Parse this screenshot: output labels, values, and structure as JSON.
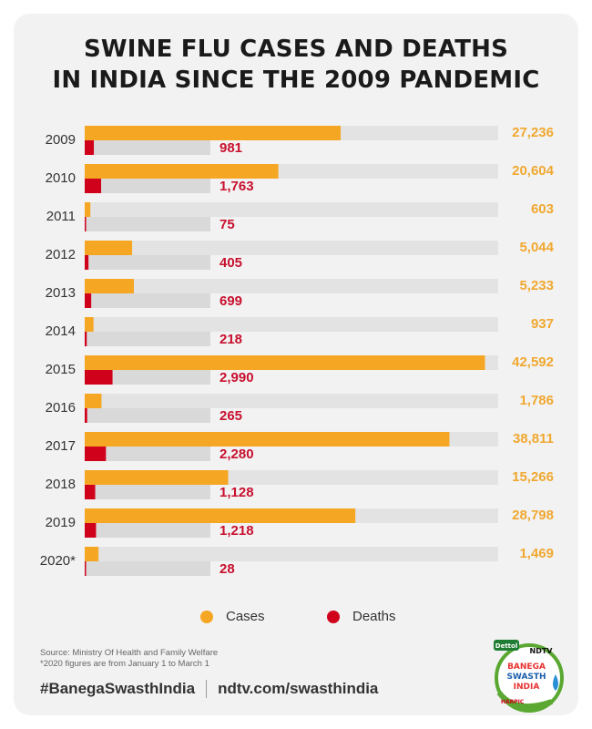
{
  "title_line1": "SWINE FLU CASES AND DEATHS",
  "title_line2": "IN INDIA SINCE THE 2009 PANDEMIC",
  "chart_data": {
    "type": "bar",
    "orientation": "horizontal",
    "title": "SWINE FLU CASES AND DEATHS IN INDIA SINCE THE 2009 PANDEMIC",
    "categories": [
      "2009",
      "2010",
      "2011",
      "2012",
      "2013",
      "2014",
      "2015",
      "2016",
      "2017",
      "2018",
      "2019",
      "2020*"
    ],
    "series": [
      {
        "name": "Cases",
        "color": "#f5a623",
        "values": [
          27236,
          20604,
          603,
          5044,
          5233,
          937,
          42592,
          1786,
          38811,
          15266,
          28798,
          1469
        ],
        "labels": [
          "27,236",
          "20,604",
          "603",
          "5,044",
          "5,233",
          "937",
          "42,592",
          "1,786",
          "38,811",
          "15,266",
          "28,798",
          "1,469"
        ],
        "max": 44000
      },
      {
        "name": "Deaths",
        "color": "#d0021b",
        "values": [
          981,
          1763,
          75,
          405,
          699,
          218,
          2990,
          265,
          2280,
          1128,
          1218,
          28
        ],
        "labels": [
          "981",
          "1,763",
          "75",
          "405",
          "699",
          "218",
          "2,990",
          "265",
          "2,280",
          "1,128",
          "1,218",
          "28"
        ],
        "max": 13500
      }
    ],
    "legend_position": "bottom",
    "grid": false
  },
  "legend": {
    "cases": "Cases",
    "deaths": "Deaths"
  },
  "source": {
    "line1": "Source: Ministry Of Health and Family Welfare",
    "line2": "*2020 figures are from January 1 to March 1"
  },
  "footer": {
    "hashtag": "#BanegaSwasthIndia",
    "url": "ndtv.com/swasthindia"
  },
  "logo": {
    "brand_top": "Dettol",
    "brand_ndtv": "NDTV",
    "line1": "BANEGA",
    "line2": "SWASTH",
    "line3": "INDIA",
    "brand_bottom": "HARPIC"
  }
}
